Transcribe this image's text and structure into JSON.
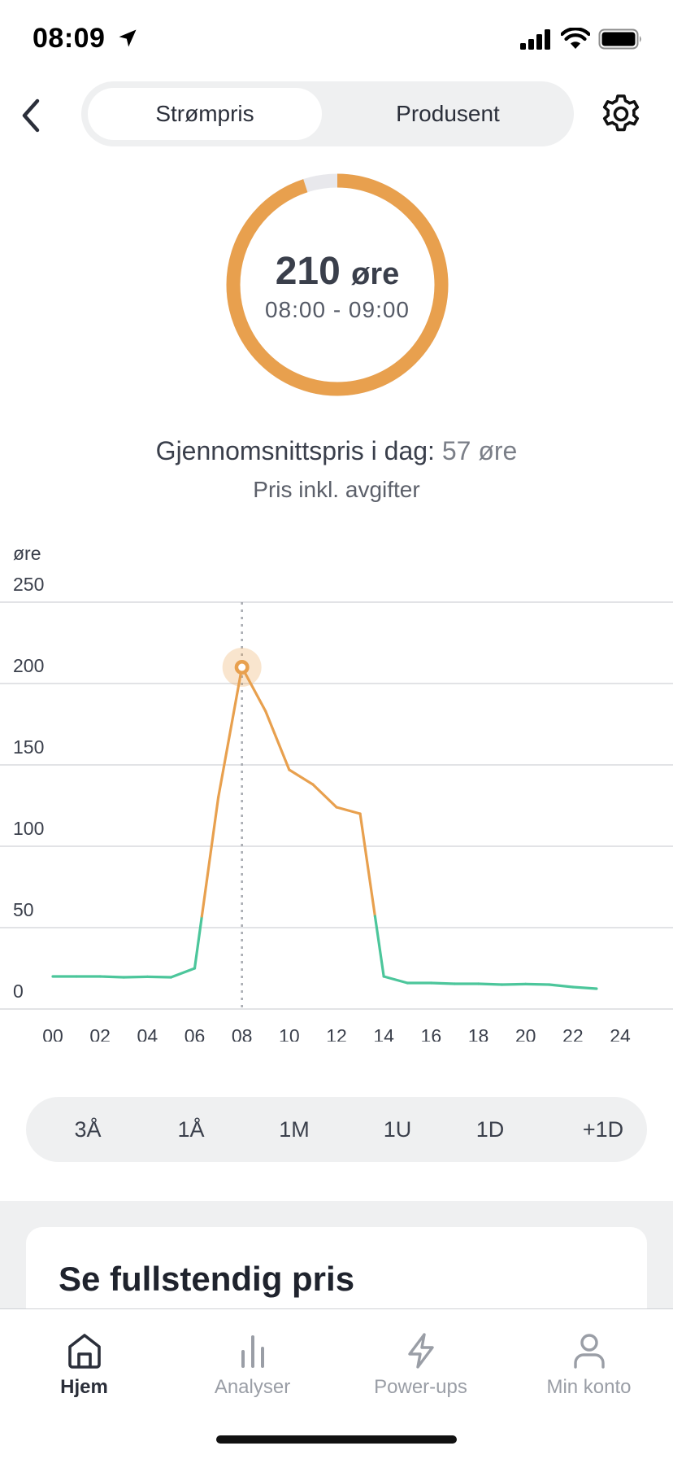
{
  "status": {
    "time": "08:09"
  },
  "header": {
    "tabs": [
      {
        "label": "Strømpris",
        "active": true
      },
      {
        "label": "Produsent",
        "active": false
      }
    ]
  },
  "current": {
    "value": "210",
    "unit": "øre",
    "interval": "08:00 - 09:00",
    "ring_fill_fraction": 0.95,
    "accent_color": "#e8a04e",
    "track_color": "#e8e8ec"
  },
  "average": {
    "label": "Gjennomsnittspris i dag:",
    "value": "57 øre",
    "note": "Pris inkl. avgifter"
  },
  "chart_data": {
    "type": "line",
    "ylabel": "øre",
    "ylim": [
      0,
      250
    ],
    "yticks": [
      "0",
      "50",
      "100",
      "150",
      "200",
      "250"
    ],
    "xlim": [
      0,
      24
    ],
    "xticks": [
      "00",
      "02",
      "04",
      "06",
      "08",
      "10",
      "12",
      "14",
      "16",
      "18",
      "20",
      "22",
      "24"
    ],
    "threshold": 57,
    "colors": {
      "high": "#e8a04e",
      "low": "#4cc69b"
    },
    "selected_hour": 8,
    "series": [
      {
        "x": [
          0,
          1,
          2,
          3,
          4,
          5,
          6,
          7,
          8,
          9,
          10,
          11,
          12,
          13,
          14,
          15,
          16,
          17,
          18,
          19,
          20,
          21,
          22,
          23
        ],
        "values": [
          20,
          20,
          20,
          19.5,
          19.8,
          19.5,
          25,
          130,
          210,
          183,
          147,
          138,
          124,
          120,
          20,
          16,
          16,
          15.5,
          15.5,
          15,
          15.3,
          15,
          13.5,
          12.5
        ]
      }
    ]
  },
  "period": {
    "options": [
      "3Å",
      "1Å",
      "1M",
      "1U",
      "1D",
      "+1D"
    ],
    "selected": "1D"
  },
  "card": {
    "title": "Se fullstendig pris"
  },
  "tabbar": {
    "items": [
      {
        "label": "Hjem",
        "icon": "home-icon",
        "active": true
      },
      {
        "label": "Analyser",
        "icon": "bar-chart-icon",
        "active": false
      },
      {
        "label": "Power-ups",
        "icon": "lightning-icon",
        "active": false
      },
      {
        "label": "Min konto",
        "icon": "person-icon",
        "active": false
      }
    ]
  }
}
